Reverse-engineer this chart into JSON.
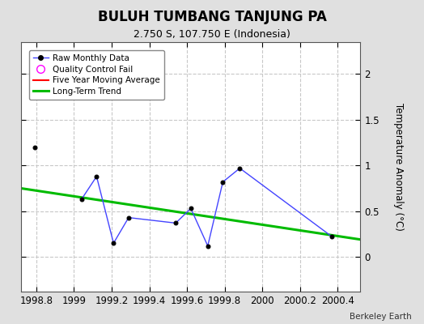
{
  "title": "BULUH TUMBANG TANJUNG PA",
  "subtitle": "2.750 S, 107.750 E (Indonesia)",
  "credit": "Berkeley Earth",
  "ylabel": "Temperature Anomaly (°C)",
  "xlim": [
    1998.72,
    2000.52
  ],
  "ylim": [
    -0.38,
    2.35
  ],
  "yticks": [
    0.0,
    0.5,
    1.0,
    1.5,
    2.0
  ],
  "xticks": [
    1998.8,
    1999.0,
    1999.2,
    1999.4,
    1999.6,
    1999.8,
    2000.0,
    2000.2,
    2000.4
  ],
  "raw_x_seg1": [
    1998.79
  ],
  "raw_y_seg1": [
    1.2
  ],
  "raw_x_seg2": [
    1999.04,
    1999.12,
    1999.21,
    1999.29,
    1999.54,
    1999.62,
    1999.71,
    1999.79,
    1999.88,
    2000.37
  ],
  "raw_y_seg2": [
    0.63,
    0.88,
    0.15,
    0.43,
    0.37,
    0.53,
    0.12,
    0.82,
    0.97,
    0.22
  ],
  "trend_x": [
    1998.72,
    2000.52
  ],
  "trend_y": [
    0.75,
    0.19
  ],
  "bg_color": "#e0e0e0",
  "plot_bg_color": "#ffffff",
  "grid_color": "#c8c8c8",
  "raw_line_color": "#4444ff",
  "raw_marker_color": "#000000",
  "trend_color": "#00bb00",
  "ma_color": "#ff0000",
  "legend_box_bg": "#ffffff",
  "title_fontsize": 12,
  "subtitle_fontsize": 9,
  "tick_fontsize": 8.5,
  "ylabel_fontsize": 8.5
}
